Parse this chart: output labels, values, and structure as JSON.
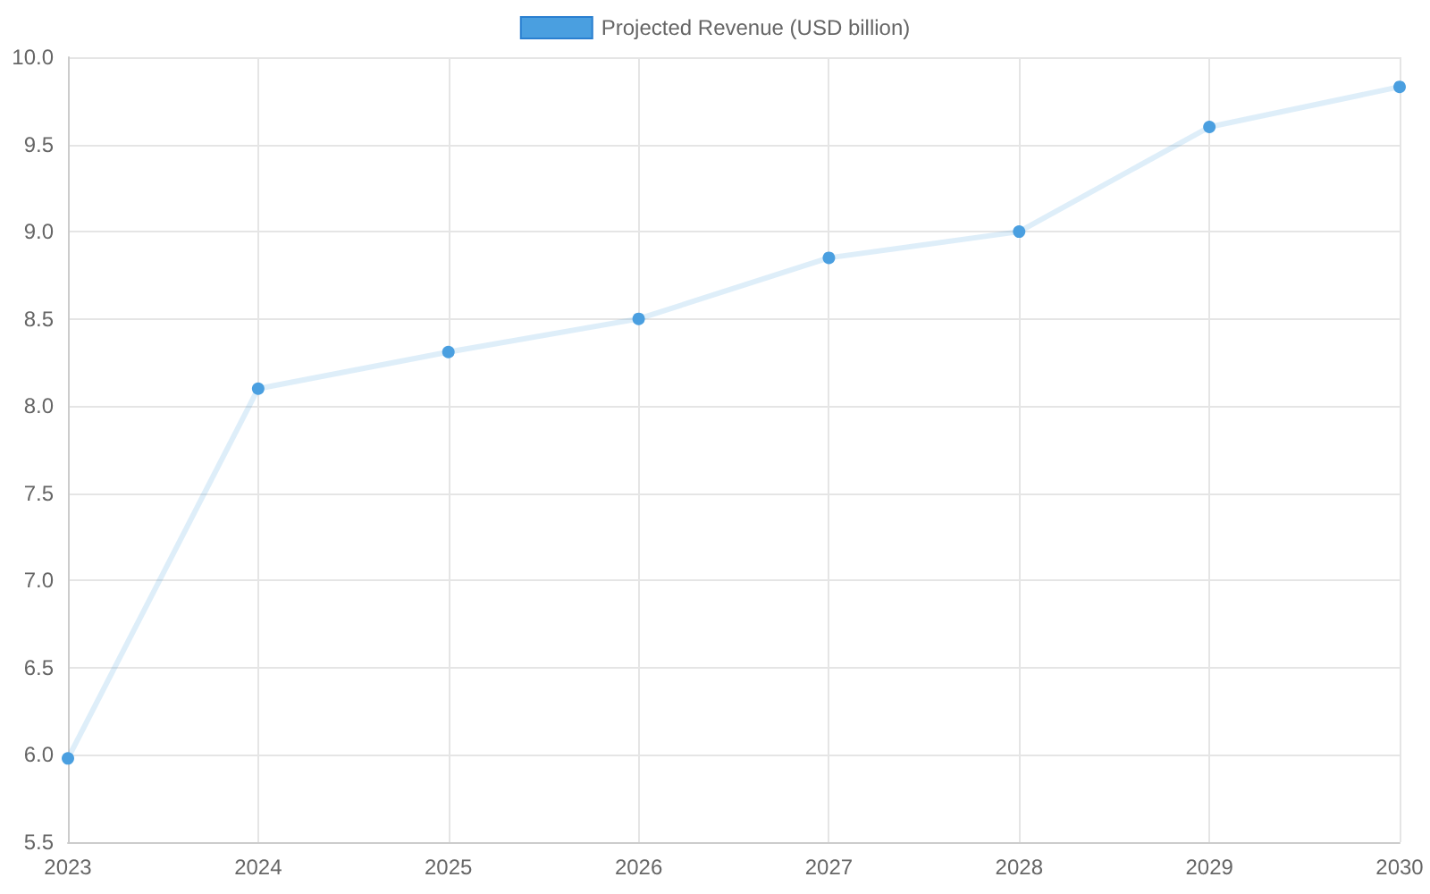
{
  "chart_data": {
    "type": "line",
    "categories": [
      "2023",
      "2024",
      "2025",
      "2026",
      "2027",
      "2028",
      "2029",
      "2030"
    ],
    "series": [
      {
        "name": "Projected Revenue (USD billion)",
        "color": "#4a9fe0",
        "values": [
          5.98,
          8.1,
          8.31,
          8.5,
          8.85,
          9.0,
          9.6,
          9.83
        ]
      }
    ],
    "ylim": [
      5.5,
      10.0
    ],
    "yticks": [
      {
        "value": 5.5,
        "label": "5.5"
      },
      {
        "value": 6.0,
        "label": "6.0"
      },
      {
        "value": 6.5,
        "label": "6.5"
      },
      {
        "value": 7.0,
        "label": "7.0"
      },
      {
        "value": 7.5,
        "label": "7.5"
      },
      {
        "value": 8.0,
        "label": "8.0"
      },
      {
        "value": 8.5,
        "label": "8.5"
      },
      {
        "value": 9.0,
        "label": "9.0"
      },
      {
        "value": 9.5,
        "label": "9.5"
      },
      {
        "value": 10.0,
        "label": "10.0"
      }
    ],
    "grid": true,
    "legend": "top",
    "marker": "circle",
    "line_style": "solid"
  }
}
